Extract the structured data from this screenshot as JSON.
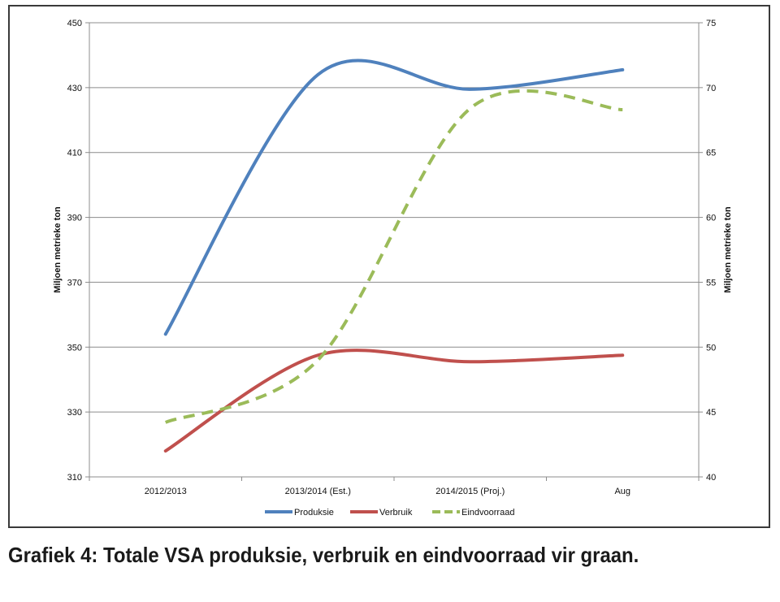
{
  "caption": "Grafiek 4: Totale VSA produksie, verbruik en eindvoorraad vir graan.",
  "chart_data": {
    "type": "line",
    "categories": [
      "2012/2013",
      "2013/2014 (Est.)",
      "2014/2015 (Proj.)",
      "Aug"
    ],
    "ylabel_left": "Miljoen metrieke ton",
    "ylabel_right": "Miljoen metrieke ton",
    "ylim_left": [
      310,
      450
    ],
    "yticks_left": [
      310,
      330,
      350,
      370,
      390,
      410,
      430,
      450
    ],
    "ylim_right": [
      40,
      75
    ],
    "yticks_right": [
      40,
      45,
      50,
      55,
      60,
      65,
      70,
      75
    ],
    "grid": true,
    "smooth": true,
    "legend_position": "bottom",
    "series": [
      {
        "name": "Produksie",
        "axis": "left",
        "color": "#4f81bd",
        "dashed": false,
        "values": [
          354,
          434,
          429.5,
          435.5
        ]
      },
      {
        "name": "Verbruik",
        "axis": "left",
        "color": "#c0504d",
        "dashed": false,
        "values": [
          318,
          347.5,
          345.5,
          347.5
        ]
      },
      {
        "name": "Eindvoorraad",
        "axis": "right",
        "color": "#9bbb59",
        "dashed": true,
        "values": [
          44.2,
          49,
          68.4,
          68.3
        ]
      }
    ]
  }
}
